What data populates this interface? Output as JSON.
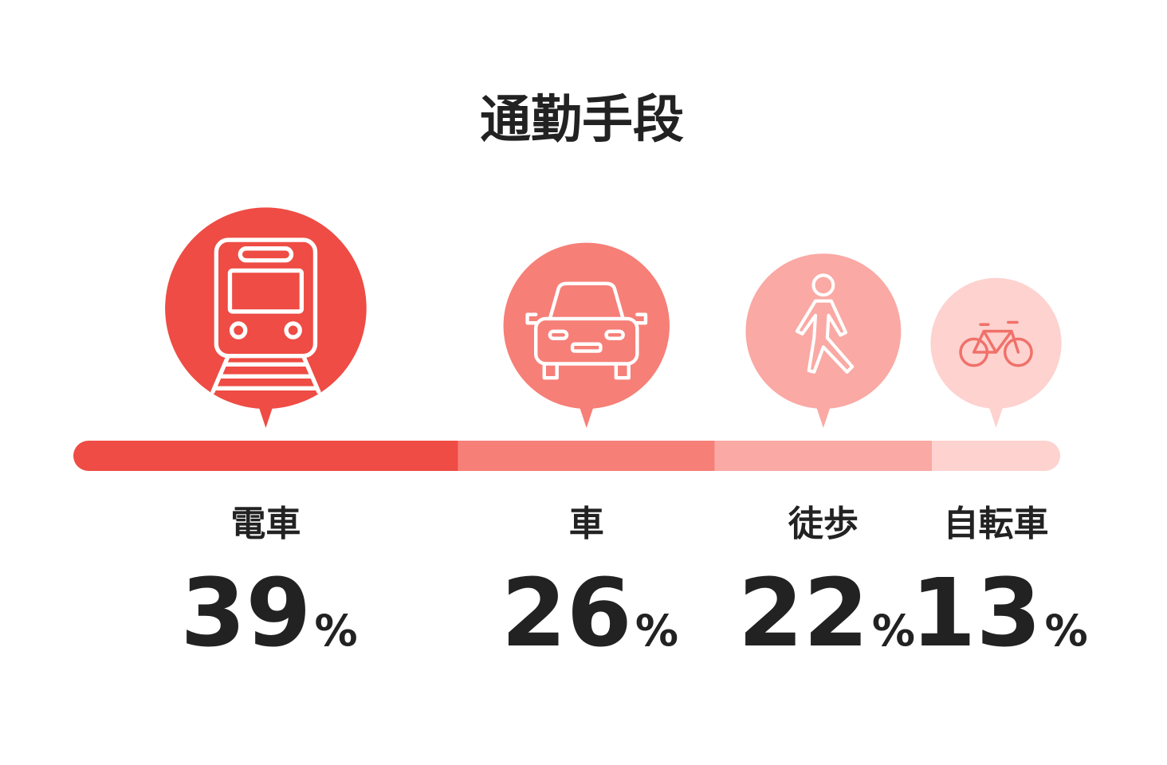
{
  "chart_data": {
    "type": "bar",
    "title": "通勤手段",
    "categories": [
      "電車",
      "車",
      "徒歩",
      "自転車"
    ],
    "values": [
      39,
      26,
      22,
      13
    ],
    "unit": "%",
    "colors": [
      "#ee4c44",
      "#f67f77",
      "#faa9a4",
      "#fdd2cf"
    ],
    "xlim": [
      0,
      100
    ]
  }
}
